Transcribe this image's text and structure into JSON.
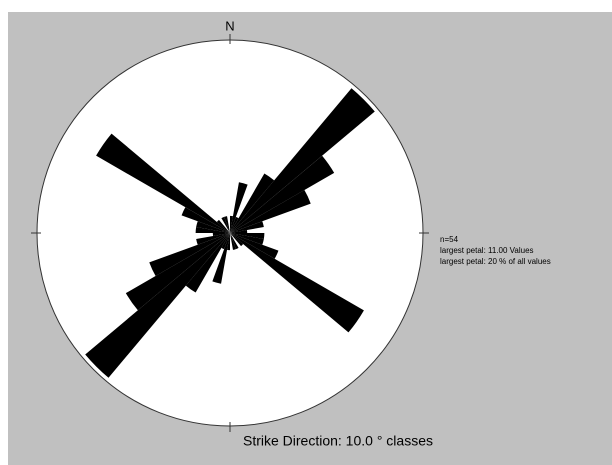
{
  "chart_data": {
    "type": "rose",
    "north_label": "N",
    "xlabel": "Strike Direction: 10.0 ° classes",
    "annotations": [
      "n=54",
      "largest petal: 11.00 Values",
      "largest petal: 20 % of all values"
    ],
    "values": [
      1,
      3,
      1,
      4,
      11,
      7,
      5,
      2,
      1,
      2,
      2,
      3,
      9,
      1,
      0,
      1,
      1,
      0
    ],
    "color": "#000000"
  }
}
